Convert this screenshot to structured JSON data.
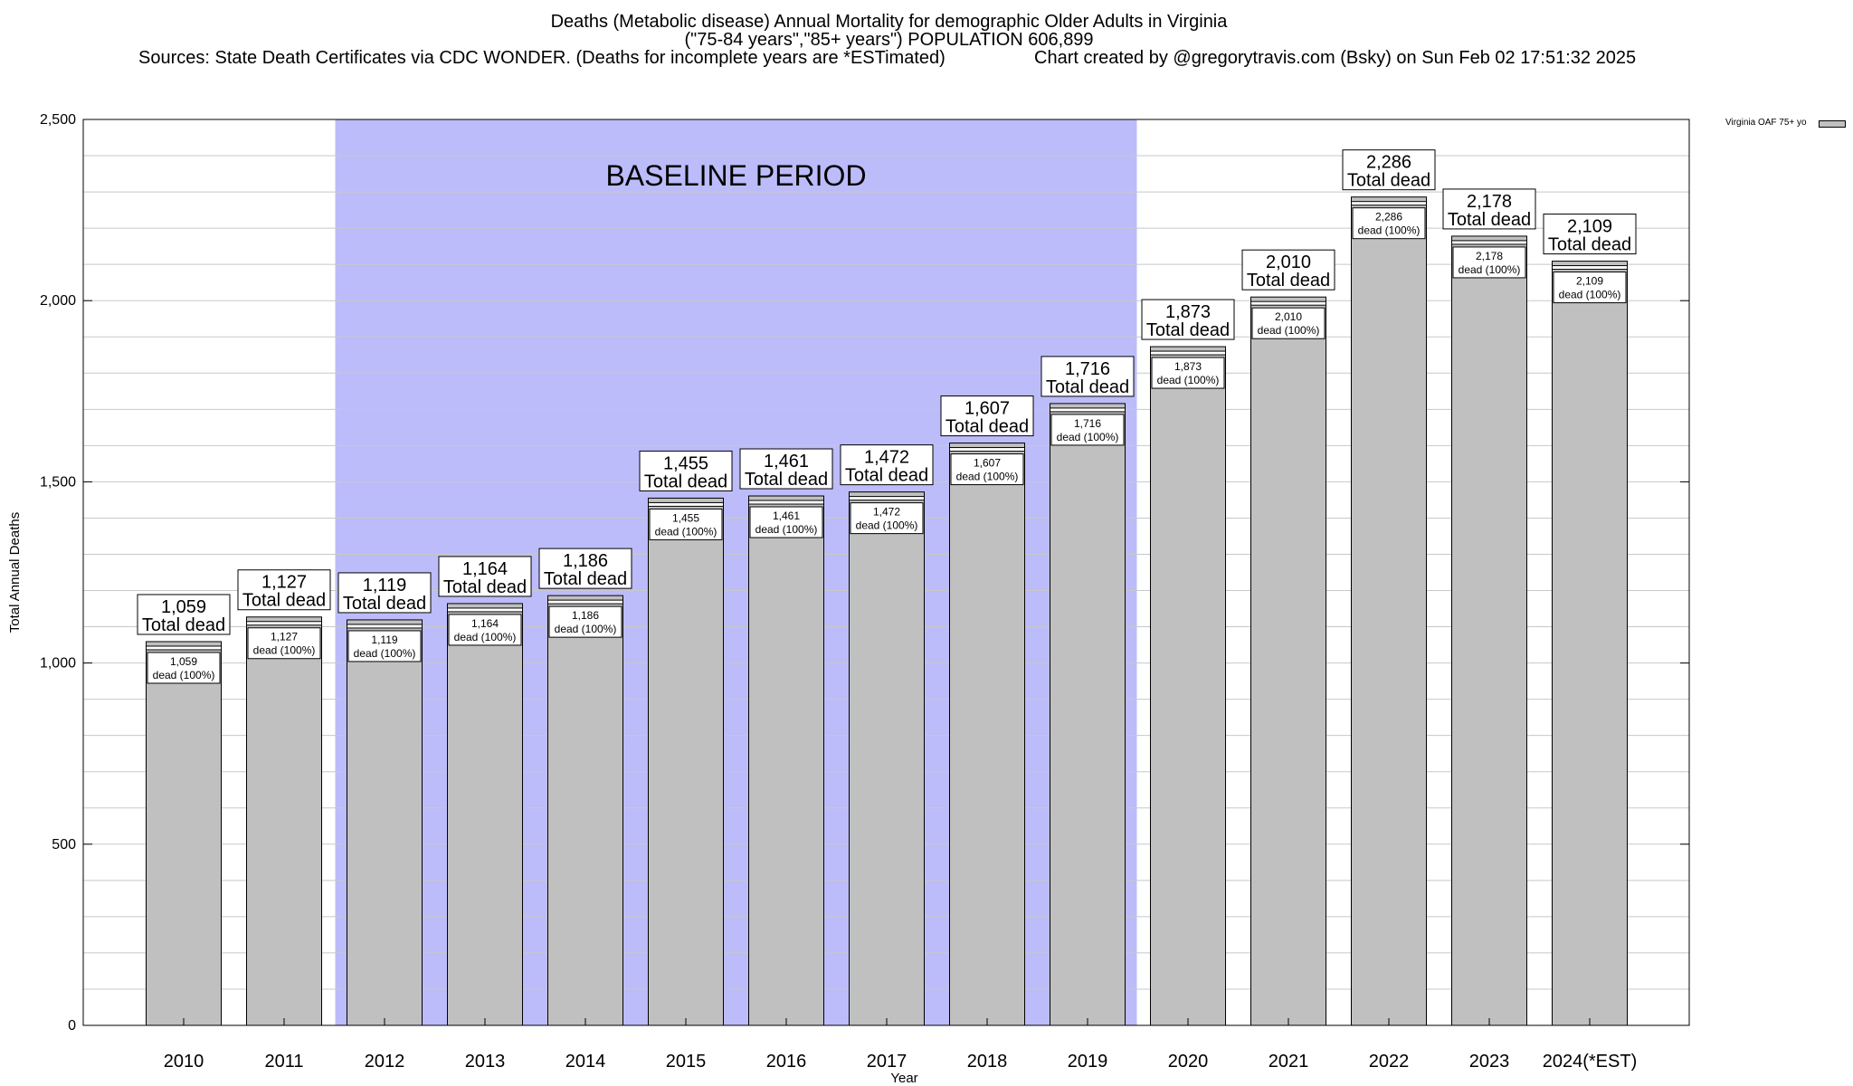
{
  "header": {
    "title_line1": "Deaths (Metabolic disease) Annual Mortality for demographic Older Adults in Virginia",
    "title_line2": "(\"75-84 years\",\"85+ years\") POPULATION 606,899",
    "sources": "Sources: State Death Certificates via CDC WONDER. (Deaths for incomplete years are *ESTimated)",
    "credit": "Chart created by @gregorytravis.com (Bsky) on Sun Feb 02 17:51:32 2025"
  },
  "legend": {
    "label": "Virginia OAF 75+ yo"
  },
  "colors": {
    "bar": "#c0c0c0",
    "baseline_shade": "#bcbcfa",
    "grid": "#c8c8c8"
  },
  "chart_data": {
    "type": "bar",
    "categories": [
      "2010",
      "2011",
      "2012",
      "2013",
      "2014",
      "2015",
      "2016",
      "2017",
      "2018",
      "2019",
      "2020",
      "2021",
      "2022",
      "2023",
      "2024(*EST)"
    ],
    "series": [
      {
        "name": "Virginia OAF 75+ yo",
        "values": [
          1059,
          1127,
          1119,
          1164,
          1186,
          1455,
          1461,
          1472,
          1607,
          1716,
          1873,
          2010,
          2286,
          2178,
          2109
        ]
      }
    ],
    "value_labels": [
      "1,059",
      "1,127",
      "1,119",
      "1,164",
      "1,186",
      "1,455",
      "1,461",
      "1,472",
      "1,607",
      "1,716",
      "1,873",
      "2,010",
      "2,286",
      "2,178",
      "2,109"
    ],
    "top_label_suffix": "Total dead",
    "inner_label_suffix": "dead (100%)",
    "xlabel": "Year",
    "ylabel": "Total Annual Deaths",
    "ylim": [
      0,
      2500
    ],
    "yticks": [
      0,
      500,
      1000,
      1500,
      2000,
      2500
    ],
    "ytick_labels": [
      "0",
      "500",
      "1,000",
      "1,500",
      "2,000",
      "2,500"
    ],
    "grid": true,
    "legend_position": "top-right",
    "annotation": {
      "text": "BASELINE PERIOD",
      "from": "2012",
      "to": "2019"
    }
  }
}
